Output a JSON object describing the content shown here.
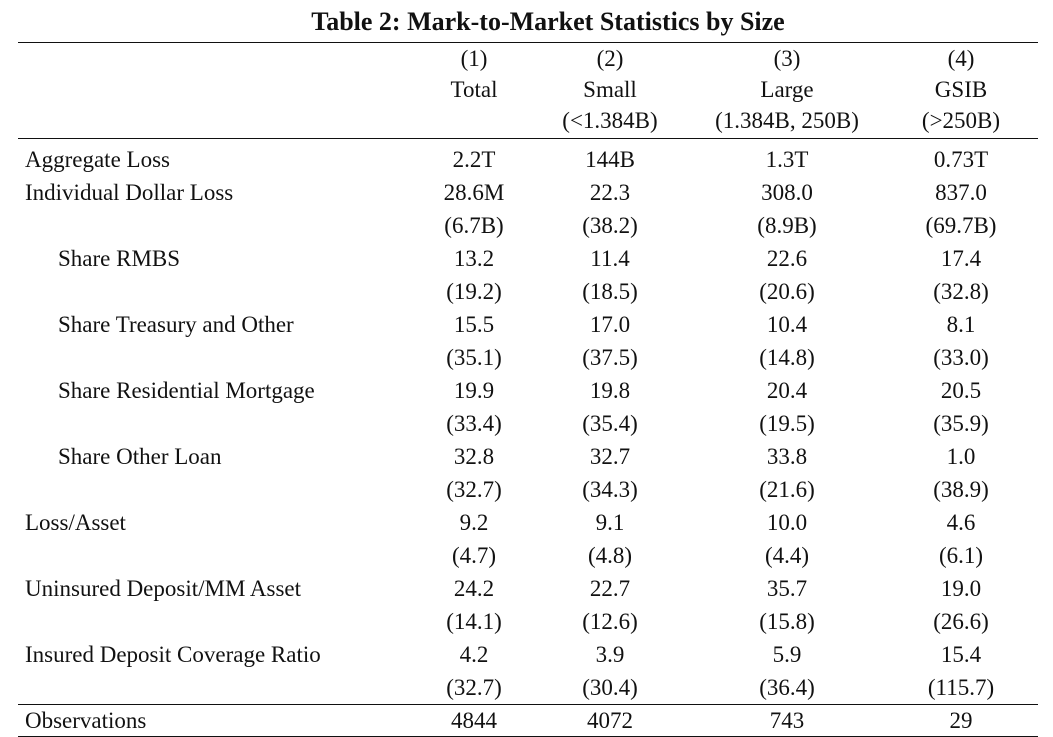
{
  "title": "Table 2: Mark-to-Market Statistics by Size",
  "columns": [
    {
      "number": "(1)",
      "name": "Total",
      "range": ""
    },
    {
      "number": "(2)",
      "name": "Small",
      "range": "(<1.384B)"
    },
    {
      "number": "(3)",
      "name": "Large",
      "range": "(1.384B, 250B)"
    },
    {
      "number": "(4)",
      "name": "GSIB",
      "range": "(>250B)"
    }
  ],
  "rows": [
    {
      "label": "Aggregate Loss",
      "values": [
        "2.2T",
        "144B",
        "1.3T",
        "0.73T"
      ],
      "se": null
    },
    {
      "label": "Individual Dollar Loss",
      "values": [
        "28.6M",
        "22.3",
        "308.0",
        "837.0"
      ],
      "se": [
        "(6.7B)",
        "(38.2)",
        "(8.9B)",
        "(69.7B)"
      ]
    },
    {
      "label": "Share RMBS",
      "values": [
        "13.2",
        "11.4",
        "22.6",
        "17.4"
      ],
      "se": [
        "(19.2)",
        "(18.5)",
        "(20.6)",
        "(32.8)"
      ]
    },
    {
      "label": "Share Treasury and Other",
      "values": [
        "15.5",
        "17.0",
        "10.4",
        "8.1"
      ],
      "se": [
        "(35.1)",
        "(37.5)",
        "(14.8)",
        "(33.0)"
      ]
    },
    {
      "label": "Share Residential Mortgage",
      "values": [
        "19.9",
        "19.8",
        "20.4",
        "20.5"
      ],
      "se": [
        "(33.4)",
        "(35.4)",
        "(19.5)",
        "(35.9)"
      ]
    },
    {
      "label": "Share Other Loan",
      "values": [
        "32.8",
        "32.7",
        "33.8",
        "1.0"
      ],
      "se": [
        "(32.7)",
        "(34.3)",
        "(21.6)",
        "(38.9)"
      ]
    },
    {
      "label": "Loss/Asset",
      "values": [
        "9.2",
        "9.1",
        "10.0",
        "4.6"
      ],
      "se": [
        "(4.7)",
        "(4.8)",
        "(4.4)",
        "(6.1)"
      ]
    },
    {
      "label": "Uninsured Deposit/MM Asset",
      "values": [
        "24.2",
        "22.7",
        "35.7",
        "19.0"
      ],
      "se": [
        "(14.1)",
        "(12.6)",
        "(15.8)",
        "(26.6)"
      ]
    },
    {
      "label": "Insured Deposit Coverage Ratio",
      "values": [
        "4.2",
        "3.9",
        "5.9",
        "15.4"
      ],
      "se": [
        "(32.7)",
        "(30.4)",
        "(36.4)",
        "(115.7)"
      ]
    }
  ],
  "observations": {
    "label": "Observations",
    "values": [
      "4844",
      "4072",
      "743",
      "29"
    ]
  }
}
